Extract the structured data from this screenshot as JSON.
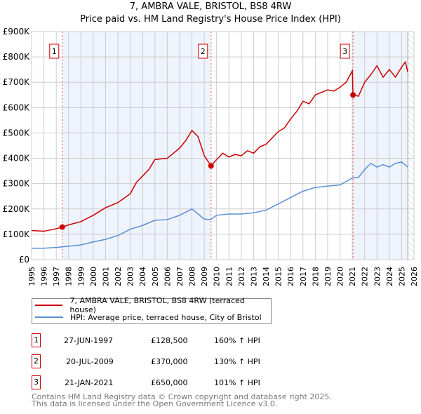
{
  "chart_data": {
    "type": "line",
    "title": "7, AMBRA VALE, BRISTOL, BS8 4RW",
    "subtitle": "Price paid vs. HM Land Registry's House Price Index (HPI)",
    "xlim": [
      1995,
      2026
    ],
    "ylim": [
      0,
      900000
    ],
    "x_ticks": [
      "1995",
      "1996",
      "1997",
      "1998",
      "1999",
      "2000",
      "2001",
      "2002",
      "2003",
      "2004",
      "2005",
      "2006",
      "2007",
      "2008",
      "2009",
      "2010",
      "2011",
      "2012",
      "2013",
      "2014",
      "2015",
      "2016",
      "2017",
      "2018",
      "2019",
      "2020",
      "2021",
      "2022",
      "2023",
      "2024",
      "2025",
      "2026"
    ],
    "y_ticks": [
      {
        "v": 0,
        "label": "£0"
      },
      {
        "v": 100000,
        "label": "£100K"
      },
      {
        "v": 200000,
        "label": "£200K"
      },
      {
        "v": 300000,
        "label": "£300K"
      },
      {
        "v": 400000,
        "label": "£400K"
      },
      {
        "v": 500000,
        "label": "£500K"
      },
      {
        "v": 600000,
        "label": "£600K"
      },
      {
        "v": 700000,
        "label": "£700K"
      },
      {
        "v": 800000,
        "label": "£800K"
      },
      {
        "v": 900000,
        "label": "£900K"
      }
    ],
    "grid": true,
    "series": [
      {
        "name": "7, AMBRA VALE, BRISTOL, BS8 4RW (terraced house)",
        "color": "#cc0000",
        "x": [
          1995,
          1996,
          1997,
          1997.5,
          1998,
          1999,
          2000,
          2001,
          2002,
          2003,
          2003.5,
          2004,
          2004.5,
          2005,
          2006,
          2007,
          2007.5,
          2008,
          2008.5,
          2009,
          2009.55,
          2010,
          2010.5,
          2011,
          2011.5,
          2012,
          2012.5,
          2013,
          2013.5,
          2014,
          2014.5,
          2015,
          2015.5,
          2016,
          2016.5,
          2017,
          2017.5,
          2018,
          2018.5,
          2019,
          2019.5,
          2020,
          2020.5,
          2021,
          2021.06,
          2021.5,
          2022,
          2022.5,
          2023,
          2023.5,
          2024,
          2024.5,
          2025,
          2025.3,
          2025.5
        ],
        "y": [
          115000,
          112000,
          122000,
          128500,
          137000,
          150000,
          175000,
          205000,
          225000,
          260000,
          305000,
          330000,
          355000,
          395000,
          400000,
          440000,
          470000,
          510000,
          485000,
          410000,
          370000,
          395000,
          420000,
          405000,
          415000,
          410000,
          430000,
          420000,
          445000,
          455000,
          480000,
          505000,
          520000,
          555000,
          585000,
          625000,
          615000,
          650000,
          660000,
          670000,
          665000,
          680000,
          700000,
          745000,
          650000,
          645000,
          700000,
          730000,
          765000,
          720000,
          750000,
          720000,
          760000,
          780000,
          740000
        ]
      },
      {
        "name": "HPI: Average price, terraced house, City of Bristol",
        "color": "#5b8fd6",
        "x": [
          1995,
          1996,
          1997,
          1998,
          1999,
          2000,
          2001,
          2002,
          2003,
          2004,
          2005,
          2006,
          2007,
          2008,
          2009,
          2009.5,
          2010,
          2011,
          2012,
          2013,
          2014,
          2015,
          2016,
          2017,
          2018,
          2019,
          2020,
          2021,
          2021.5,
          2022,
          2022.5,
          2023,
          2023.5,
          2024,
          2024.5,
          2025,
          2025.5
        ],
        "y": [
          45000,
          45000,
          48000,
          53000,
          58000,
          70000,
          80000,
          95000,
          120000,
          135000,
          155000,
          158000,
          175000,
          200000,
          160000,
          158000,
          175000,
          180000,
          180000,
          185000,
          195000,
          220000,
          245000,
          270000,
          285000,
          290000,
          295000,
          322000,
          325000,
          355000,
          380000,
          365000,
          375000,
          365000,
          380000,
          385000,
          365000
        ]
      }
    ],
    "sales": [
      {
        "label": "1",
        "x": 1997.49,
        "price": 128500,
        "date": "27-JUN-1997",
        "price_text": "£128,500",
        "hpi": "160% ↑ HPI"
      },
      {
        "label": "2",
        "x": 2009.55,
        "price": 370000,
        "date": "20-JUL-2009",
        "price_text": "£370,000",
        "hpi": "130% ↑ HPI"
      },
      {
        "label": "3",
        "x": 2021.06,
        "price": 650000,
        "date": "21-JAN-2021",
        "price_text": "£650,000",
        "hpi": "101% ↑ HPI"
      }
    ],
    "shaded_ranges": [
      [
        1997.49,
        2009.55
      ],
      [
        2021.06,
        2025.5
      ]
    ],
    "hatched_from": 2025.5,
    "legend_placement": "below"
  },
  "footer": [
    "Contains HM Land Registry data © Crown copyright and database right 2025.",
    "This data is licensed under the Open Government Licence v3.0."
  ]
}
